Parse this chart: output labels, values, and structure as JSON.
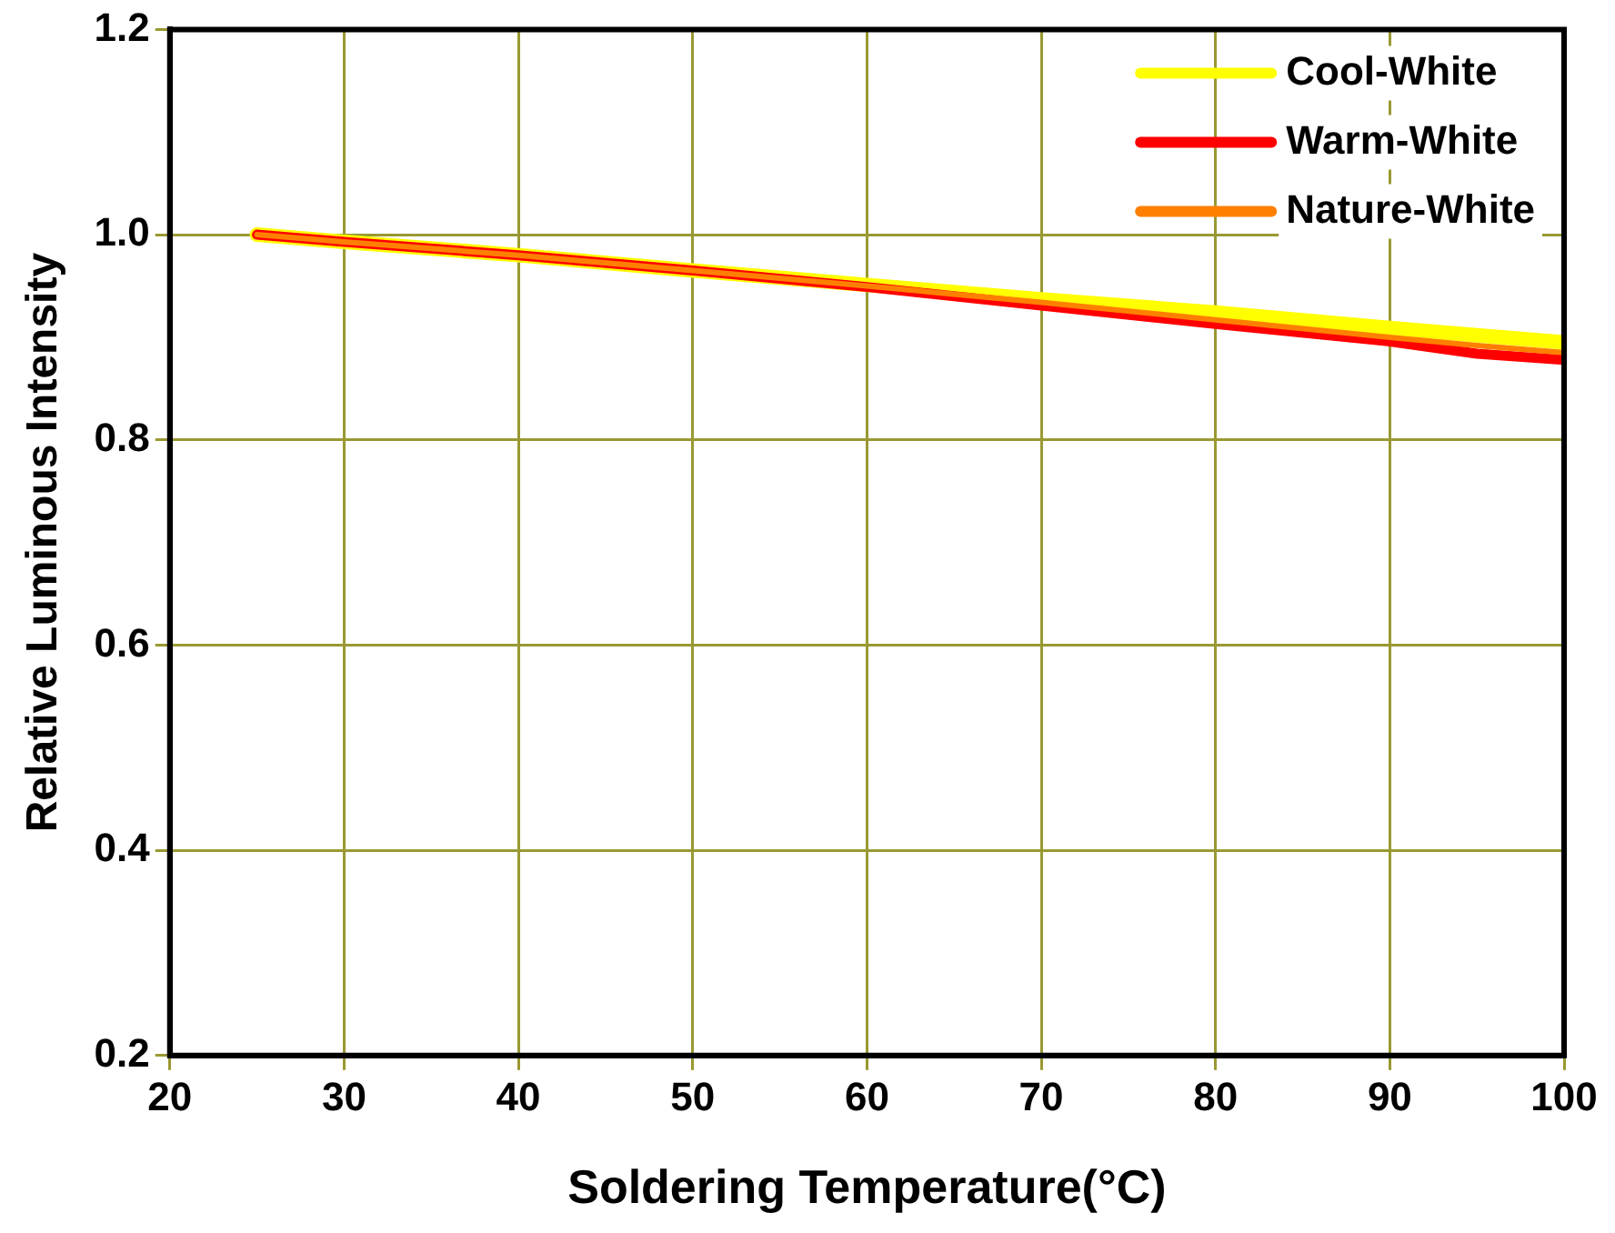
{
  "chart_data": {
    "type": "line",
    "xlabel": "Soldering Temperature(°C)",
    "ylabel": "Relative Luminous Intensity",
    "x": [
      25,
      30,
      40,
      50,
      60,
      70,
      80,
      90,
      95,
      100
    ],
    "series": [
      {
        "name": "Cool-White",
        "color": "#ffff00",
        "values": [
          1.0,
          0.993,
          0.98,
          0.965,
          0.951,
          0.937,
          0.924,
          0.909,
          0.902,
          0.895
        ]
      },
      {
        "name": "Warm-White",
        "color": "#ff0000",
        "values": [
          1.0,
          0.993,
          0.98,
          0.965,
          0.949,
          0.931,
          0.913,
          0.896,
          0.884,
          0.878
        ]
      },
      {
        "name": "Nature-White",
        "color": "#ff8000",
        "values": [
          1.0,
          0.993,
          0.98,
          0.965,
          0.95,
          0.934,
          0.917,
          0.9,
          0.892,
          0.885
        ]
      }
    ],
    "xlim": [
      20,
      100
    ],
    "xticks": [
      20,
      30,
      40,
      50,
      60,
      70,
      80,
      90,
      100
    ],
    "ylim": [
      0.2,
      1.2
    ],
    "yticks": [
      {
        "value": 0.2,
        "label": "0.2"
      },
      {
        "value": 0.4,
        "label": "0.4"
      },
      {
        "value": 0.6,
        "label": "0.6"
      },
      {
        "value": 0.8,
        "label": "0.8"
      },
      {
        "value": 1.0,
        "label": "1.0"
      },
      {
        "value": 1.2,
        "label": "1.2"
      }
    ],
    "grid": true,
    "legend": "top right",
    "marker": "none",
    "line_style": "solid"
  }
}
